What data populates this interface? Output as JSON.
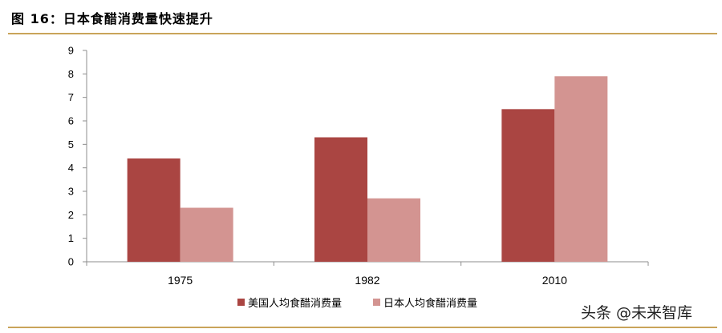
{
  "figure": {
    "title": "图 16：日本食醋消费量快速提升",
    "watermark": "头条 @未来智库"
  },
  "colors": {
    "series_us": "#aa4542",
    "series_jp": "#d39491",
    "rule": "#c9a45a",
    "axis": "#8c8c8c"
  },
  "chart_data": {
    "type": "bar",
    "categories": [
      "1975",
      "1982",
      "2010"
    ],
    "series": [
      {
        "name": "美国人均食醋消费量",
        "values": [
          4.4,
          5.3,
          6.5
        ]
      },
      {
        "name": "日本人均食醋消费量",
        "values": [
          2.3,
          2.7,
          7.9
        ]
      }
    ],
    "title": "",
    "xlabel": "",
    "ylabel": "",
    "ylim": [
      0,
      9
    ],
    "yticks": [
      0,
      1,
      2,
      3,
      4,
      5,
      6,
      7,
      8,
      9
    ],
    "grid": false,
    "legend": "bottom-center"
  }
}
